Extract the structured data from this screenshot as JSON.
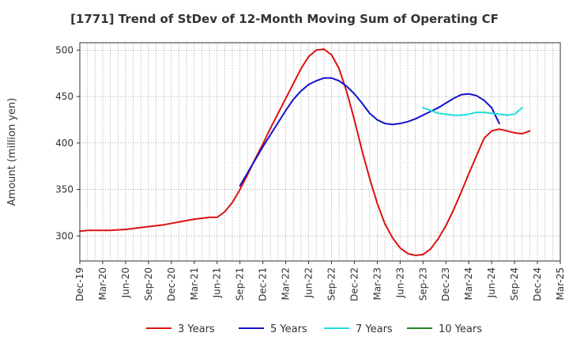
{
  "chart_data": {
    "type": "line",
    "title": "[1771]  Trend of StDev of 12-Month Moving Sum of Operating CF",
    "ylabel": "Amount (million yen)",
    "xlabel": "",
    "x_tick_labels": [
      "Dec-19",
      "Mar-20",
      "Jun-20",
      "Sep-20",
      "Dec-20",
      "Mar-21",
      "Jun-21",
      "Sep-21",
      "Dec-21",
      "Mar-22",
      "Jun-22",
      "Sep-22",
      "Dec-22",
      "Mar-23",
      "Jun-23",
      "Sep-23",
      "Dec-23",
      "Mar-24",
      "Jun-24",
      "Sep-24",
      "Dec-24",
      "Mar-25"
    ],
    "x_tick_indices": [
      0,
      3,
      6,
      9,
      12,
      15,
      18,
      21,
      24,
      27,
      30,
      33,
      36,
      39,
      42,
      45,
      48,
      51,
      54,
      57,
      60,
      63
    ],
    "y_ticks": [
      300,
      350,
      400,
      450,
      500
    ],
    "ylim": [
      273,
      508
    ],
    "xlim": [
      0,
      63
    ],
    "grid": true,
    "legend_position": "bottom",
    "series": [
      {
        "name": "3 Years",
        "color": "#dd1111",
        "start_index": 0,
        "values": [
          305,
          306,
          306,
          306,
          306,
          306.5,
          307,
          308,
          309,
          310,
          311,
          312,
          313.5,
          315,
          316.5,
          318,
          319,
          320,
          320,
          326,
          336,
          350,
          366,
          383,
          399,
          416,
          432,
          448,
          464,
          480,
          493,
          500,
          501,
          495,
          480,
          455,
          425,
          392,
          362,
          335,
          313,
          298,
          287,
          281,
          279,
          280,
          286,
          297,
          311,
          328,
          347,
          367,
          386,
          405,
          413,
          415,
          413,
          411,
          410,
          413
        ]
      },
      {
        "name": "5 Years",
        "color": "#1111cc",
        "start_index": 21,
        "values": [
          354,
          368,
          382,
          396,
          409,
          422,
          435,
          447,
          456,
          463,
          467,
          470,
          470,
          467,
          461,
          453,
          443,
          432,
          425,
          421,
          420,
          421,
          423,
          426,
          430,
          434,
          438,
          443,
          448,
          452,
          453,
          451,
          446,
          438,
          421
        ]
      },
      {
        "name": "7 Years",
        "color": "#22dddd",
        "start_index": 45,
        "values": [
          438,
          435,
          432,
          431,
          430,
          430,
          431,
          433,
          433,
          432,
          431,
          430,
          431,
          438
        ]
      },
      {
        "name": "10 Years",
        "color": "#228822",
        "start_index": 0,
        "values": []
      }
    ]
  }
}
